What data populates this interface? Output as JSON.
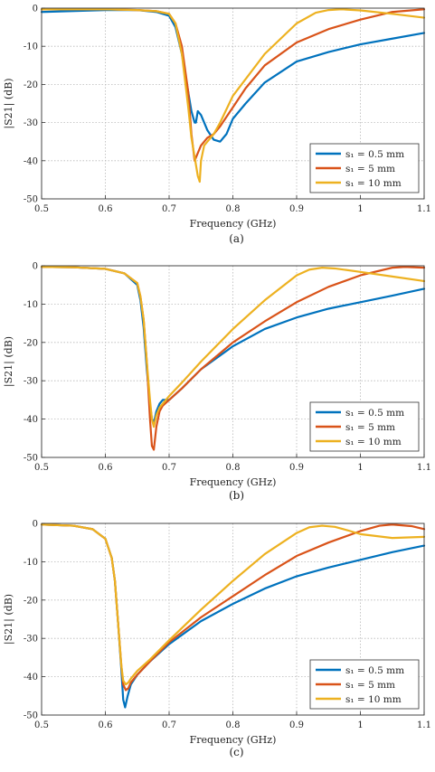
{
  "chart_data": [
    {
      "type": "line",
      "panel_label": "(a)",
      "xlabel": "Frequency (GHz)",
      "ylabel": "|S21| (dB)",
      "xlim": [
        0.5,
        1.1
      ],
      "ylim": [
        -50,
        0
      ],
      "xticks": [
        0.5,
        0.6,
        0.7,
        0.8,
        0.9,
        1,
        1.1
      ],
      "yticks": [
        0,
        -10,
        -20,
        -30,
        -40,
        -50
      ],
      "grid": true,
      "legend_position": "bottom-right",
      "series": [
        {
          "name": "s1 = 0.5 mm",
          "color": "#0072BD",
          "x": [
            0.5,
            0.6,
            0.65,
            0.68,
            0.7,
            0.71,
            0.72,
            0.73,
            0.735,
            0.74,
            0.742,
            0.745,
            0.75,
            0.755,
            0.76,
            0.77,
            0.78,
            0.79,
            0.8,
            0.82,
            0.85,
            0.9,
            0.95,
            1.0,
            1.05,
            1.1
          ],
          "y": [
            -1,
            -0.5,
            -0.5,
            -1,
            -2,
            -5,
            -12,
            -22,
            -27,
            -30,
            -30,
            -27,
            -28,
            -30,
            -32,
            -34.5,
            -35,
            -33,
            -29,
            -25,
            -19.5,
            -14,
            -11.5,
            -9.5,
            -8,
            -6.5
          ]
        },
        {
          "name": "s1 = 5 mm",
          "color": "#D95319",
          "x": [
            0.5,
            0.6,
            0.65,
            0.68,
            0.7,
            0.71,
            0.72,
            0.73,
            0.735,
            0.74,
            0.745,
            0.75,
            0.76,
            0.77,
            0.78,
            0.8,
            0.82,
            0.85,
            0.9,
            0.95,
            1.0,
            1.05,
            1.1
          ],
          "y": [
            -0.3,
            -0.3,
            -0.5,
            -0.8,
            -1.5,
            -4,
            -10,
            -22,
            -33,
            -40,
            -38,
            -36,
            -34,
            -33,
            -31,
            -26,
            -21,
            -15,
            -9,
            -5.5,
            -3,
            -1,
            -0.3
          ]
        },
        {
          "name": "s1 = 10 mm",
          "color": "#EDB120",
          "x": [
            0.5,
            0.6,
            0.65,
            0.68,
            0.7,
            0.71,
            0.72,
            0.73,
            0.735,
            0.74,
            0.745,
            0.748,
            0.75,
            0.755,
            0.76,
            0.77,
            0.78,
            0.8,
            0.85,
            0.9,
            0.93,
            0.95,
            0.97,
            1.0,
            1.05,
            1.1
          ],
          "y": [
            -0.3,
            -0.3,
            -0.5,
            -0.8,
            -1.5,
            -4,
            -12,
            -26,
            -34,
            -39,
            -44,
            -45.5,
            -40,
            -36,
            -35,
            -33,
            -30,
            -23,
            -12,
            -4,
            -1.2,
            -0.5,
            -0.3,
            -0.6,
            -1.5,
            -2.5
          ]
        }
      ]
    },
    {
      "type": "line",
      "panel_label": "(b)",
      "xlabel": "Frequency (GHz)",
      "ylabel": "|S21| (dB)",
      "xlim": [
        0.5,
        1.1
      ],
      "ylim": [
        -50,
        0
      ],
      "xticks": [
        0.5,
        0.6,
        0.7,
        0.8,
        0.9,
        1,
        1.1
      ],
      "yticks": [
        0,
        -10,
        -20,
        -30,
        -40,
        -50
      ],
      "grid": true,
      "legend_position": "bottom-right",
      "series": [
        {
          "name": "s1 = 0.5 mm",
          "color": "#0072BD",
          "x": [
            0.5,
            0.55,
            0.6,
            0.63,
            0.65,
            0.655,
            0.66,
            0.665,
            0.67,
            0.673,
            0.676,
            0.68,
            0.685,
            0.69,
            0.7,
            0.72,
            0.75,
            0.8,
            0.85,
            0.9,
            0.95,
            1.0,
            1.05,
            1.1
          ],
          "y": [
            -0.3,
            -0.4,
            -0.8,
            -2,
            -5,
            -9,
            -16,
            -27,
            -36,
            -40,
            -41,
            -38,
            -36,
            -35,
            -35,
            -32,
            -27,
            -21,
            -16.5,
            -13.5,
            -11.2,
            -9.5,
            -7.8,
            -6
          ]
        },
        {
          "name": "s1 = 5 mm",
          "color": "#D95319",
          "x": [
            0.5,
            0.55,
            0.6,
            0.63,
            0.65,
            0.655,
            0.66,
            0.665,
            0.67,
            0.673,
            0.676,
            0.68,
            0.685,
            0.69,
            0.7,
            0.72,
            0.75,
            0.8,
            0.85,
            0.9,
            0.95,
            1.0,
            1.05,
            1.07,
            1.1
          ],
          "y": [
            -0.3,
            -0.4,
            -0.8,
            -2,
            -4.5,
            -8,
            -14,
            -25,
            -40,
            -47,
            -48,
            -42,
            -38,
            -36.5,
            -35,
            -32,
            -27,
            -20,
            -14.5,
            -9.5,
            -5.5,
            -2.5,
            -0.5,
            -0.3,
            -0.5
          ]
        },
        {
          "name": "s1 = 10 mm",
          "color": "#EDB120",
          "x": [
            0.5,
            0.55,
            0.6,
            0.63,
            0.65,
            0.655,
            0.66,
            0.665,
            0.67,
            0.673,
            0.676,
            0.68,
            0.685,
            0.69,
            0.7,
            0.72,
            0.75,
            0.8,
            0.85,
            0.9,
            0.92,
            0.94,
            0.96,
            1.0,
            1.05,
            1.1
          ],
          "y": [
            -0.3,
            -0.4,
            -0.8,
            -2,
            -4.5,
            -8,
            -14,
            -25,
            -35,
            -40,
            -42,
            -39,
            -37,
            -36,
            -34,
            -30.5,
            -25,
            -16.5,
            -9,
            -2.5,
            -1,
            -0.5,
            -0.7,
            -1.6,
            -2.8,
            -4
          ]
        }
      ]
    },
    {
      "type": "line",
      "panel_label": "(c)",
      "xlabel": "Frequency (GHz)",
      "ylabel": "|S21| (dB)",
      "xlim": [
        0.5,
        1.1
      ],
      "ylim": [
        -50,
        0
      ],
      "xticks": [
        0.5,
        0.6,
        0.7,
        0.8,
        0.9,
        1,
        1.1
      ],
      "yticks": [
        0,
        -10,
        -20,
        -30,
        -40,
        -50
      ],
      "grid": true,
      "legend_position": "bottom-right",
      "series": [
        {
          "name": "s1 = 0.5 mm",
          "color": "#0072BD",
          "x": [
            0.5,
            0.55,
            0.58,
            0.6,
            0.61,
            0.615,
            0.62,
            0.625,
            0.628,
            0.631,
            0.635,
            0.64,
            0.65,
            0.67,
            0.7,
            0.75,
            0.8,
            0.85,
            0.9,
            0.95,
            1.0,
            1.05,
            1.1
          ],
          "y": [
            -0.3,
            -0.6,
            -1.5,
            -4,
            -9,
            -15,
            -26,
            -38,
            -46,
            -48,
            -45,
            -42,
            -39.5,
            -36,
            -31.5,
            -25.5,
            -21,
            -17,
            -13.8,
            -11.5,
            -9.5,
            -7.5,
            -5.8
          ]
        },
        {
          "name": "s1 = 5 mm",
          "color": "#D95319",
          "x": [
            0.5,
            0.55,
            0.58,
            0.6,
            0.61,
            0.615,
            0.62,
            0.625,
            0.628,
            0.632,
            0.636,
            0.64,
            0.65,
            0.67,
            0.7,
            0.75,
            0.8,
            0.85,
            0.9,
            0.95,
            1.0,
            1.03,
            1.05,
            1.08,
            1.1
          ],
          "y": [
            -0.3,
            -0.6,
            -1.5,
            -4,
            -9,
            -15,
            -26,
            -37,
            -42,
            -43.5,
            -43,
            -41.5,
            -39.5,
            -36,
            -31,
            -24.5,
            -19,
            -13.5,
            -8.5,
            -5,
            -2,
            -0.6,
            -0.3,
            -0.7,
            -1.5
          ]
        },
        {
          "name": "s1 = 10 mm",
          "color": "#EDB120",
          "x": [
            0.5,
            0.55,
            0.58,
            0.6,
            0.61,
            0.615,
            0.62,
            0.625,
            0.628,
            0.632,
            0.636,
            0.64,
            0.65,
            0.67,
            0.7,
            0.75,
            0.8,
            0.85,
            0.9,
            0.92,
            0.94,
            0.96,
            0.98,
            1.0,
            1.05,
            1.1
          ],
          "y": [
            -0.3,
            -0.6,
            -1.5,
            -4,
            -9,
            -15,
            -26,
            -37,
            -41,
            -42,
            -41.5,
            -40.5,
            -38.5,
            -35.5,
            -30.5,
            -22.5,
            -15,
            -8,
            -2.5,
            -1,
            -0.6,
            -0.9,
            -1.8,
            -2.8,
            -3.8,
            -3.5
          ]
        }
      ]
    }
  ],
  "legend_labels": [
    "s₁ = 0.5 mm",
    "s₁ = 5 mm",
    "s₁ = 10 mm"
  ]
}
